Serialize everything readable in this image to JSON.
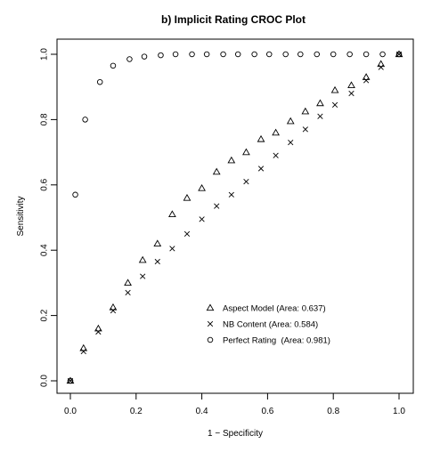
{
  "chart_data": {
    "type": "scatter",
    "title": "b) Implicit Rating CROC Plot",
    "xlabel": "1 − Specificity",
    "ylabel": "Sensitivity",
    "xlim": [
      0,
      1
    ],
    "ylim": [
      0,
      1
    ],
    "x_ticks": [
      "0.0",
      "0.2",
      "0.4",
      "0.6",
      "0.8",
      "1.0"
    ],
    "y_ticks": [
      "0.0",
      "0.2",
      "0.4",
      "0.6",
      "0.8",
      "1.0"
    ],
    "grid": false,
    "legend_position": "bottom-right",
    "series": [
      {
        "name": "Aspect Model (Area: 0.637)",
        "marker": "triangle",
        "points": [
          [
            0.0,
            0.0
          ],
          [
            0.04,
            0.1
          ],
          [
            0.085,
            0.16
          ],
          [
            0.13,
            0.225
          ],
          [
            0.175,
            0.3
          ],
          [
            0.22,
            0.37
          ],
          [
            0.265,
            0.42
          ],
          [
            0.31,
            0.51
          ],
          [
            0.355,
            0.56
          ],
          [
            0.4,
            0.59
          ],
          [
            0.445,
            0.64
          ],
          [
            0.49,
            0.675
          ],
          [
            0.535,
            0.7
          ],
          [
            0.58,
            0.74
          ],
          [
            0.625,
            0.76
          ],
          [
            0.67,
            0.795
          ],
          [
            0.715,
            0.825
          ],
          [
            0.76,
            0.85
          ],
          [
            0.805,
            0.89
          ],
          [
            0.855,
            0.905
          ],
          [
            0.9,
            0.93
          ],
          [
            0.945,
            0.97
          ],
          [
            1.0,
            1.0
          ]
        ]
      },
      {
        "name": "NB Content (Area: 0.584)",
        "marker": "cross",
        "points": [
          [
            0.0,
            0.0
          ],
          [
            0.04,
            0.09
          ],
          [
            0.085,
            0.15
          ],
          [
            0.13,
            0.215
          ],
          [
            0.175,
            0.27
          ],
          [
            0.22,
            0.32
          ],
          [
            0.265,
            0.365
          ],
          [
            0.31,
            0.405
          ],
          [
            0.355,
            0.45
          ],
          [
            0.4,
            0.495
          ],
          [
            0.445,
            0.535
          ],
          [
            0.49,
            0.57
          ],
          [
            0.535,
            0.61
          ],
          [
            0.58,
            0.65
          ],
          [
            0.625,
            0.69
          ],
          [
            0.67,
            0.73
          ],
          [
            0.715,
            0.77
          ],
          [
            0.76,
            0.81
          ],
          [
            0.805,
            0.845
          ],
          [
            0.855,
            0.88
          ],
          [
            0.9,
            0.92
          ],
          [
            0.945,
            0.96
          ],
          [
            1.0,
            1.0
          ]
        ]
      },
      {
        "name": "Perfect Rating  (Area: 0.981)",
        "marker": "circle",
        "points": [
          [
            0.0,
            0.0
          ],
          [
            0.015,
            0.57
          ],
          [
            0.045,
            0.8
          ],
          [
            0.09,
            0.915
          ],
          [
            0.13,
            0.965
          ],
          [
            0.18,
            0.985
          ],
          [
            0.225,
            0.993
          ],
          [
            0.275,
            0.997
          ],
          [
            0.32,
            1.0
          ],
          [
            0.37,
            1.0
          ],
          [
            0.415,
            1.0
          ],
          [
            0.465,
            1.0
          ],
          [
            0.51,
            1.0
          ],
          [
            0.56,
            1.0
          ],
          [
            0.605,
            1.0
          ],
          [
            0.655,
            1.0
          ],
          [
            0.7,
            1.0
          ],
          [
            0.75,
            1.0
          ],
          [
            0.8,
            1.0
          ],
          [
            0.85,
            1.0
          ],
          [
            0.9,
            1.0
          ],
          [
            0.95,
            1.0
          ],
          [
            1.0,
            1.0
          ]
        ]
      }
    ]
  }
}
